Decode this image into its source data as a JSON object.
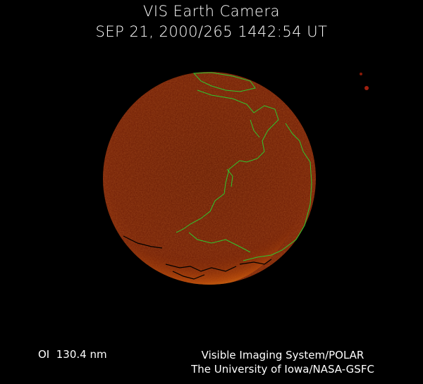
{
  "header": {
    "title": "VIS Earth Camera",
    "timestamp": "SEP 21, 2000/265 1442:54 UT"
  },
  "footer": {
    "wavelength": "OI  130.4 nm",
    "instrument": "Visible Imaging System/POLAR",
    "institution": "The University of Iowa/NASA-GSFC"
  },
  "colors": {
    "background": "#000000",
    "disk": "#6a1a04",
    "aurora": "#ffb020",
    "coastline": "#2fc82f"
  }
}
